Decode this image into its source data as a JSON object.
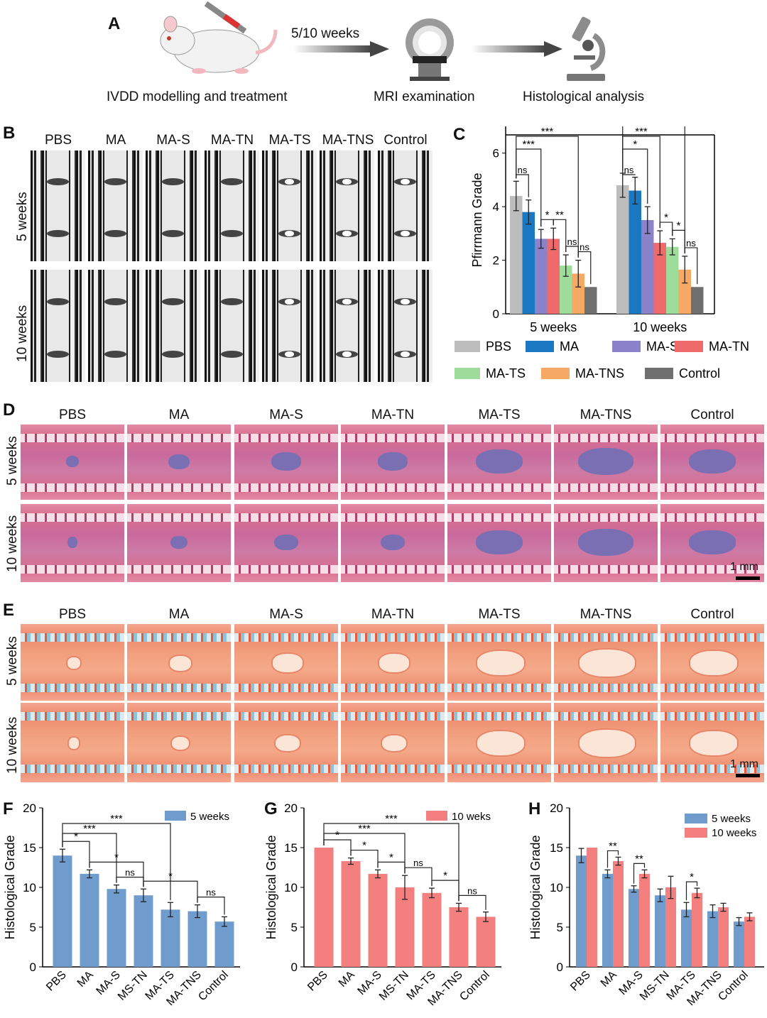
{
  "panel_letters": [
    "A",
    "B",
    "C",
    "D",
    "E",
    "F",
    "G",
    "H"
  ],
  "panel_a": {
    "arrow_label": "5/10 weeks",
    "steps": [
      "IVDD modelling and treatment",
      "MRI examination",
      "Histological analysis"
    ],
    "icons": [
      "rat-syringe-icon",
      "mri-scanner-icon",
      "microscope-icon"
    ]
  },
  "groups": [
    "PBS",
    "MA",
    "MA-S",
    "MA-TN",
    "MA-TS",
    "MA-TNS",
    "Control"
  ],
  "rows": [
    "5 weeks",
    "10 weeks"
  ],
  "scale_bar": "1 mm",
  "colors": {
    "PBS": "#bdbdbd",
    "MA": "#1a78c2",
    "MA-S": "#8a83c9",
    "MA-TN": "#ef6b6b",
    "MA-TS": "#9edc9a",
    "MA-TNS": "#f5a964",
    "Control": "#6f6f6f",
    "blue5": "#6f9ccd",
    "red10": "#f47f7f"
  },
  "chart_data": [
    {
      "id": "C",
      "type": "bar",
      "title": "",
      "ylabel": "Pfirrmann Grade",
      "xlabel": "",
      "categories": [
        "5 weeks",
        "10 weeks"
      ],
      "ylim": [
        0,
        7
      ],
      "yticks": [
        0,
        2,
        4,
        6
      ],
      "series": [
        {
          "name": "PBS",
          "values": [
            4.4,
            4.8
          ],
          "errors": [
            0.55,
            0.45
          ]
        },
        {
          "name": "MA",
          "values": [
            3.8,
            4.6
          ],
          "errors": [
            0.45,
            0.5
          ]
        },
        {
          "name": "MA-S",
          "values": [
            2.8,
            3.5
          ],
          "errors": [
            0.35,
            0.5
          ]
        },
        {
          "name": "MA-TN",
          "values": [
            2.8,
            2.65
          ],
          "errors": [
            0.4,
            0.45
          ]
        },
        {
          "name": "MA-TS",
          "values": [
            1.8,
            2.5
          ],
          "errors": [
            0.4,
            0.3
          ]
        },
        {
          "name": "MA-TNS",
          "values": [
            1.5,
            1.65
          ],
          "errors": [
            0.5,
            0.5
          ]
        },
        {
          "name": "Control",
          "values": [
            1.0,
            1.0
          ],
          "errors": [
            0,
            0
          ]
        }
      ],
      "significance": [
        {
          "group": 0,
          "from": 0,
          "to": 1,
          "label": "ns"
        },
        {
          "group": 0,
          "from": 0,
          "to": 2,
          "label": "***"
        },
        {
          "group": 0,
          "from": 0,
          "to": 5,
          "label": "***"
        },
        {
          "group": 0,
          "from": 2,
          "to": 3,
          "label": "*"
        },
        {
          "group": 0,
          "from": 3,
          "to": 4,
          "label": "**"
        },
        {
          "group": 0,
          "from": 4,
          "to": 5,
          "label": "ns"
        },
        {
          "group": 0,
          "from": 5,
          "to": 6,
          "label": "ns"
        },
        {
          "group": 1,
          "from": 0,
          "to": 1,
          "label": "ns"
        },
        {
          "group": 1,
          "from": 0,
          "to": 2,
          "label": "*"
        },
        {
          "group": 1,
          "from": 0,
          "to": 3,
          "label": "***"
        },
        {
          "group": 1,
          "from": 0,
          "to": 5,
          "label": "***"
        },
        {
          "group": 1,
          "from": 3,
          "to": 4,
          "label": "*"
        },
        {
          "group": 1,
          "from": 4,
          "to": 5,
          "label": "*"
        },
        {
          "group": 1,
          "from": 5,
          "to": 6,
          "label": "ns"
        }
      ],
      "legend": [
        "PBS",
        "MA",
        "MA-S",
        "MA-TN",
        "MA-TS",
        "MA-TNS",
        "Control"
      ]
    },
    {
      "id": "F",
      "type": "bar",
      "ylabel": "Histological Grade",
      "categories": [
        "PBS",
        "MA",
        "MA-S",
        "MS-TN",
        "MA-TS",
        "MA-TNS",
        "Control"
      ],
      "ylim": [
        0,
        20
      ],
      "yticks": [
        0,
        5,
        10,
        15,
        20
      ],
      "legend": [
        "5 weeks"
      ],
      "series": [
        {
          "name": "5 weeks",
          "values": [
            14.0,
            11.7,
            9.8,
            9.0,
            7.2,
            7.0,
            5.7
          ],
          "errors": [
            0.8,
            0.5,
            0.5,
            0.8,
            0.9,
            0.8,
            0.6
          ]
        }
      ],
      "significance": [
        {
          "from": 0,
          "to": 1,
          "label": "*"
        },
        {
          "from": 0,
          "to": 2,
          "label": "***"
        },
        {
          "from": 0,
          "to": 4,
          "label": "***"
        },
        {
          "from": 1,
          "to": 3,
          "label": "*"
        },
        {
          "from": 2,
          "to": 3,
          "label": "ns"
        },
        {
          "from": 3,
          "to": 5,
          "label": "*"
        },
        {
          "from": 5,
          "to": 6,
          "label": "ns"
        }
      ]
    },
    {
      "id": "G",
      "type": "bar",
      "ylabel": "Histological Grade",
      "categories": [
        "PBS",
        "MA",
        "MA-S",
        "MS-TN",
        "MA-TS",
        "MA-TNS",
        "Control"
      ],
      "ylim": [
        0,
        20
      ],
      "yticks": [
        0,
        5,
        10,
        15,
        20
      ],
      "legend": [
        "10 weks"
      ],
      "series": [
        {
          "name": "10 weks",
          "values": [
            15.0,
            13.3,
            11.7,
            10.0,
            9.3,
            7.5,
            6.3
          ],
          "errors": [
            0,
            0.4,
            0.5,
            1.5,
            0.6,
            0.5,
            0.6
          ]
        }
      ],
      "significance": [
        {
          "from": 0,
          "to": 1,
          "label": "*"
        },
        {
          "from": 0,
          "to": 3,
          "label": "***"
        },
        {
          "from": 0,
          "to": 5,
          "label": "***"
        },
        {
          "from": 1,
          "to": 2,
          "label": "*"
        },
        {
          "from": 2,
          "to": 3,
          "label": "*"
        },
        {
          "from": 3,
          "to": 4,
          "label": "ns"
        },
        {
          "from": 4,
          "to": 5,
          "label": "*"
        },
        {
          "from": 5,
          "to": 6,
          "label": "ns"
        }
      ]
    },
    {
      "id": "H",
      "type": "bar",
      "ylabel": "Histological Grade",
      "categories": [
        "PBS",
        "MA",
        "MA-S",
        "MS-TN",
        "MA-TS",
        "MA-TNS",
        "Control"
      ],
      "ylim": [
        0,
        20
      ],
      "yticks": [
        0,
        5,
        10,
        15,
        20
      ],
      "legend": [
        "5 weeks",
        "10 weeks"
      ],
      "series": [
        {
          "name": "5 weeks",
          "values": [
            14.0,
            11.7,
            9.8,
            9.0,
            7.2,
            7.0,
            5.7
          ],
          "errors": [
            0.9,
            0.5,
            0.4,
            0.8,
            0.9,
            0.8,
            0.5
          ]
        },
        {
          "name": "10 weeks",
          "values": [
            15.0,
            13.3,
            11.7,
            10.0,
            9.3,
            7.5,
            6.3
          ],
          "errors": [
            0,
            0.5,
            0.5,
            1.4,
            0.6,
            0.5,
            0.5
          ]
        }
      ],
      "significance": [
        {
          "cat": 1,
          "label": "**"
        },
        {
          "cat": 2,
          "label": "**"
        },
        {
          "cat": 4,
          "label": "*"
        }
      ]
    }
  ]
}
